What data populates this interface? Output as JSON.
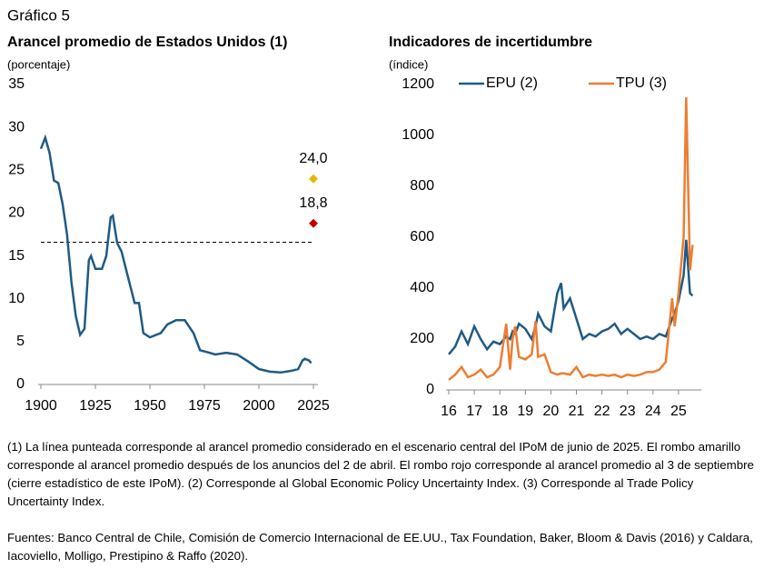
{
  "header": "Gráfico 5",
  "chart_data": [
    {
      "type": "line",
      "title": "Arancel promedio de Estados Unidos (1)",
      "y_label": "(porcentaje)",
      "x": [
        1900,
        1902,
        1904,
        1906,
        1908,
        1910,
        1912,
        1914,
        1916,
        1918,
        1920,
        1922,
        1923,
        1925,
        1928,
        1930,
        1932,
        1933,
        1935,
        1937,
        1940,
        1943,
        1945,
        1947,
        1950,
        1955,
        1958,
        1962,
        1966,
        1970,
        1973,
        1976,
        1980,
        1985,
        1990,
        1995,
        2000,
        2005,
        2010,
        2015,
        2018,
        2020,
        2021,
        2023,
        2024
      ],
      "series": [
        {
          "color": "#1f5a85",
          "values": [
            27.5,
            28.8,
            27,
            23.8,
            23.5,
            21,
            17.5,
            12,
            8,
            5.8,
            6.5,
            14.5,
            15,
            13.5,
            13.5,
            15,
            19.5,
            19.7,
            16.5,
            15.5,
            12.5,
            9.5,
            9.5,
            6,
            5.5,
            6,
            7,
            7.5,
            7.5,
            6,
            4,
            3.8,
            3.5,
            3.7,
            3.5,
            2.7,
            1.8,
            1.5,
            1.4,
            1.6,
            1.8,
            2.8,
            3,
            2.8,
            2.5
          ]
        }
      ],
      "reference_line": 16.6,
      "markers": {
        "x": [
          2025,
          2025
        ],
        "values": [
          24.0,
          18.8
        ],
        "value_labels": [
          "24,0",
          "18,8"
        ],
        "colors": [
          "#e6b800",
          "#c00000"
        ]
      },
      "xlim": [
        1899,
        2027
      ],
      "xticks": [
        1900,
        1925,
        1950,
        1975,
        2000,
        2025
      ],
      "ylim": [
        0,
        35
      ],
      "yticks": [
        0,
        5,
        10,
        15,
        20,
        25,
        30,
        35
      ]
    },
    {
      "type": "line",
      "title": "Indicadores de incertidumbre",
      "y_label": "(índice)",
      "legend": "top",
      "x": [
        16,
        16.25,
        16.5,
        16.75,
        17,
        17.25,
        17.5,
        17.75,
        18,
        18.25,
        18.4,
        18.5,
        18.6,
        18.75,
        19,
        19.25,
        19.4,
        19.5,
        19.75,
        20,
        20.25,
        20.4,
        20.5,
        20.75,
        21,
        21.25,
        21.5,
        21.75,
        22,
        22.25,
        22.5,
        22.75,
        23,
        23.25,
        23.5,
        23.75,
        24,
        24.25,
        24.5,
        24.75,
        24.85,
        25,
        25.2,
        25.3,
        25.45,
        25.55
      ],
      "series": [
        {
          "name": "EPU (2)",
          "color": "#1f5a85",
          "values": [
            140,
            170,
            230,
            180,
            250,
            200,
            160,
            190,
            180,
            210,
            200,
            230,
            220,
            260,
            240,
            200,
            250,
            300,
            250,
            230,
            380,
            420,
            320,
            360,
            280,
            200,
            220,
            210,
            230,
            240,
            260,
            220,
            240,
            220,
            200,
            210,
            200,
            220,
            210,
            280,
            300,
            350,
            450,
            590,
            380,
            370
          ]
        },
        {
          "name": "TPU (3)",
          "color": "#ed7d31",
          "values": [
            40,
            60,
            90,
            50,
            60,
            80,
            50,
            60,
            90,
            260,
            80,
            200,
            250,
            130,
            120,
            140,
            270,
            130,
            140,
            70,
            60,
            65,
            65,
            60,
            90,
            50,
            60,
            55,
            60,
            55,
            60,
            50,
            60,
            55,
            60,
            70,
            70,
            80,
            110,
            360,
            250,
            380,
            600,
            1150,
            470,
            570
          ]
        }
      ],
      "xlim": [
        15.9,
        25.9
      ],
      "xticks": [
        16,
        17,
        18,
        19,
        20,
        21,
        22,
        23,
        24,
        25
      ],
      "ylim": [
        0,
        1200
      ],
      "yticks": [
        0,
        200,
        400,
        600,
        800,
        1000,
        1200
      ]
    }
  ],
  "notes": "(1) La línea punteada corresponde al arancel promedio considerado en el escenario central del IPoM de junio de 2025. El rombo amarillo corresponde al arancel promedio después de los anuncios del 2 de abril. El rombo rojo corresponde al arancel promedio al 3 de septiembre (cierre estadístico de este IPoM). (2) Corresponde al Global Economic Policy Uncertainty Index. (3) Corresponde al Trade Policy Uncertainty Index.",
  "sources": "Fuentes: Banco Central de Chile, Comisión de Comercio Internacional de EE.UU., Tax Foundation, Baker, Bloom & Davis (2016) y Caldara, Iacoviello, Molligo, Prestipino & Raffo (2020)."
}
